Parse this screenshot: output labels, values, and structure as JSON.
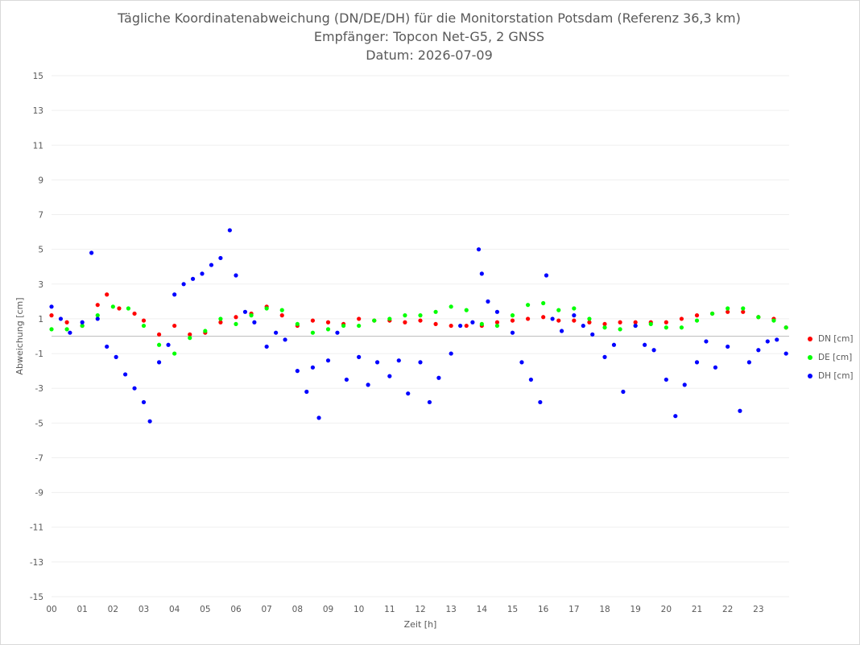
{
  "chart_data": {
    "type": "scatter",
    "title": "Tägliche Koordinatenabweichung (DN/DE/DH) für die Monitorstation Potsdam (Referenz 36,3 km)",
    "subtitle": "Empfänger: Topcon Net-G5, 2 GNSS",
    "date_line": "Datum: 2026-07-09",
    "xlabel": "Zeit [h]",
    "ylabel": "Abweichung [cm]",
    "xlim": [
      0,
      24
    ],
    "ylim": [
      -15,
      15
    ],
    "x_ticks": [
      "00",
      "01",
      "02",
      "03",
      "04",
      "05",
      "06",
      "07",
      "08",
      "09",
      "10",
      "11",
      "12",
      "13",
      "14",
      "15",
      "16",
      "17",
      "18",
      "19",
      "20",
      "21",
      "22",
      "23"
    ],
    "y_ticks": [
      15,
      13,
      11,
      9,
      7,
      5,
      3,
      1,
      -1,
      -3,
      -5,
      -7,
      -9,
      -11,
      -13,
      -15
    ],
    "legend_position": "right",
    "series": [
      {
        "name": "DN [cm]",
        "color": "#ff0000",
        "points": [
          [
            0.0,
            1.2
          ],
          [
            0.5,
            0.8
          ],
          [
            1.0,
            0.6
          ],
          [
            1.5,
            1.8
          ],
          [
            1.8,
            2.4
          ],
          [
            2.2,
            1.6
          ],
          [
            2.7,
            1.3
          ],
          [
            3.0,
            0.9
          ],
          [
            3.5,
            0.1
          ],
          [
            4.0,
            0.6
          ],
          [
            4.5,
            0.1
          ],
          [
            5.0,
            0.2
          ],
          [
            5.5,
            0.8
          ],
          [
            6.0,
            1.1
          ],
          [
            6.5,
            1.3
          ],
          [
            7.0,
            1.7
          ],
          [
            7.5,
            1.2
          ],
          [
            8.0,
            0.6
          ],
          [
            8.5,
            0.9
          ],
          [
            9.0,
            0.8
          ],
          [
            9.5,
            0.7
          ],
          [
            10.0,
            1.0
          ],
          [
            10.5,
            0.9
          ],
          [
            11.0,
            0.9
          ],
          [
            11.5,
            0.8
          ],
          [
            12.0,
            0.9
          ],
          [
            12.5,
            0.7
          ],
          [
            13.0,
            0.6
          ],
          [
            13.5,
            0.6
          ],
          [
            14.0,
            0.6
          ],
          [
            14.5,
            0.8
          ],
          [
            15.0,
            0.9
          ],
          [
            15.5,
            1.0
          ],
          [
            16.0,
            1.1
          ],
          [
            16.5,
            0.9
          ],
          [
            17.0,
            0.9
          ],
          [
            17.5,
            0.8
          ],
          [
            18.0,
            0.7
          ],
          [
            18.5,
            0.8
          ],
          [
            19.0,
            0.8
          ],
          [
            19.5,
            0.8
          ],
          [
            20.0,
            0.8
          ],
          [
            20.5,
            1.0
          ],
          [
            21.0,
            1.2
          ],
          [
            21.5,
            1.3
          ],
          [
            22.0,
            1.4
          ],
          [
            22.5,
            1.4
          ],
          [
            23.0,
            1.1
          ],
          [
            23.5,
            1.0
          ],
          [
            23.9,
            0.5
          ]
        ]
      },
      {
        "name": "DE [cm]",
        "color": "#00ff00",
        "points": [
          [
            0.0,
            0.4
          ],
          [
            0.5,
            0.4
          ],
          [
            1.0,
            0.6
          ],
          [
            1.5,
            1.2
          ],
          [
            2.0,
            1.7
          ],
          [
            2.5,
            1.6
          ],
          [
            3.0,
            0.6
          ],
          [
            3.5,
            -0.5
          ],
          [
            4.0,
            -1.0
          ],
          [
            4.5,
            -0.1
          ],
          [
            5.0,
            0.3
          ],
          [
            5.5,
            1.0
          ],
          [
            6.0,
            0.7
          ],
          [
            6.5,
            1.2
          ],
          [
            7.0,
            1.6
          ],
          [
            7.5,
            1.5
          ],
          [
            8.0,
            0.7
          ],
          [
            8.5,
            0.2
          ],
          [
            9.0,
            0.4
          ],
          [
            9.5,
            0.6
          ],
          [
            10.0,
            0.6
          ],
          [
            10.5,
            0.9
          ],
          [
            11.0,
            1.0
          ],
          [
            11.5,
            1.2
          ],
          [
            12.0,
            1.2
          ],
          [
            12.5,
            1.4
          ],
          [
            13.0,
            1.7
          ],
          [
            13.5,
            1.5
          ],
          [
            14.0,
            0.7
          ],
          [
            14.5,
            0.6
          ],
          [
            15.0,
            1.2
          ],
          [
            15.5,
            1.8
          ],
          [
            16.0,
            1.9
          ],
          [
            16.5,
            1.5
          ],
          [
            17.0,
            1.6
          ],
          [
            17.5,
            1.0
          ],
          [
            18.0,
            0.5
          ],
          [
            18.5,
            0.4
          ],
          [
            19.0,
            0.6
          ],
          [
            19.5,
            0.7
          ],
          [
            20.0,
            0.5
          ],
          [
            20.5,
            0.5
          ],
          [
            21.0,
            0.9
          ],
          [
            21.5,
            1.3
          ],
          [
            22.0,
            1.6
          ],
          [
            22.5,
            1.6
          ],
          [
            23.0,
            1.1
          ],
          [
            23.5,
            0.9
          ],
          [
            23.9,
            0.5
          ]
        ]
      },
      {
        "name": "DH [cm]",
        "color": "#0000ff",
        "points": [
          [
            0.0,
            1.7
          ],
          [
            0.3,
            1.0
          ],
          [
            0.6,
            0.2
          ],
          [
            1.0,
            0.8
          ],
          [
            1.3,
            4.8
          ],
          [
            1.5,
            1.0
          ],
          [
            1.8,
            -0.6
          ],
          [
            2.1,
            -1.2
          ],
          [
            2.4,
            -2.2
          ],
          [
            2.7,
            -3.0
          ],
          [
            3.0,
            -3.8
          ],
          [
            3.2,
            -4.9
          ],
          [
            3.5,
            -1.5
          ],
          [
            3.8,
            -0.5
          ],
          [
            4.0,
            2.4
          ],
          [
            4.3,
            3.0
          ],
          [
            4.6,
            3.3
          ],
          [
            4.9,
            3.6
          ],
          [
            5.2,
            4.1
          ],
          [
            5.5,
            4.5
          ],
          [
            5.8,
            6.1
          ],
          [
            6.0,
            3.5
          ],
          [
            6.3,
            1.4
          ],
          [
            6.6,
            0.8
          ],
          [
            7.0,
            -0.6
          ],
          [
            7.3,
            0.2
          ],
          [
            7.6,
            -0.2
          ],
          [
            8.0,
            -2.0
          ],
          [
            8.3,
            -3.2
          ],
          [
            8.5,
            -1.8
          ],
          [
            8.7,
            -4.7
          ],
          [
            9.0,
            -1.4
          ],
          [
            9.3,
            0.2
          ],
          [
            9.6,
            -2.5
          ],
          [
            10.0,
            -1.2
          ],
          [
            10.3,
            -2.8
          ],
          [
            10.6,
            -1.5
          ],
          [
            11.0,
            -2.3
          ],
          [
            11.3,
            -1.4
          ],
          [
            11.6,
            -3.3
          ],
          [
            12.0,
            -1.5
          ],
          [
            12.3,
            -3.8
          ],
          [
            12.6,
            -2.4
          ],
          [
            13.0,
            -1.0
          ],
          [
            13.3,
            0.6
          ],
          [
            13.7,
            0.8
          ],
          [
            13.9,
            5.0
          ],
          [
            14.0,
            3.6
          ],
          [
            14.2,
            2.0
          ],
          [
            14.5,
            1.4
          ],
          [
            15.0,
            0.2
          ],
          [
            15.3,
            -1.5
          ],
          [
            15.6,
            -2.5
          ],
          [
            15.9,
            -3.8
          ],
          [
            16.1,
            3.5
          ],
          [
            16.3,
            1.0
          ],
          [
            16.6,
            0.3
          ],
          [
            17.0,
            1.2
          ],
          [
            17.3,
            0.6
          ],
          [
            17.6,
            0.1
          ],
          [
            18.0,
            -1.2
          ],
          [
            18.3,
            -0.5
          ],
          [
            18.6,
            -3.2
          ],
          [
            19.0,
            0.6
          ],
          [
            19.3,
            -0.5
          ],
          [
            19.6,
            -0.8
          ],
          [
            20.0,
            -2.5
          ],
          [
            20.3,
            -4.6
          ],
          [
            20.6,
            -2.8
          ],
          [
            21.0,
            -1.5
          ],
          [
            21.3,
            -0.3
          ],
          [
            21.6,
            -1.8
          ],
          [
            22.0,
            -0.6
          ],
          [
            22.4,
            -4.3
          ],
          [
            22.7,
            -1.5
          ],
          [
            23.0,
            -0.8
          ],
          [
            23.3,
            -0.3
          ],
          [
            23.6,
            -0.2
          ],
          [
            23.9,
            -1.0
          ]
        ]
      }
    ]
  }
}
